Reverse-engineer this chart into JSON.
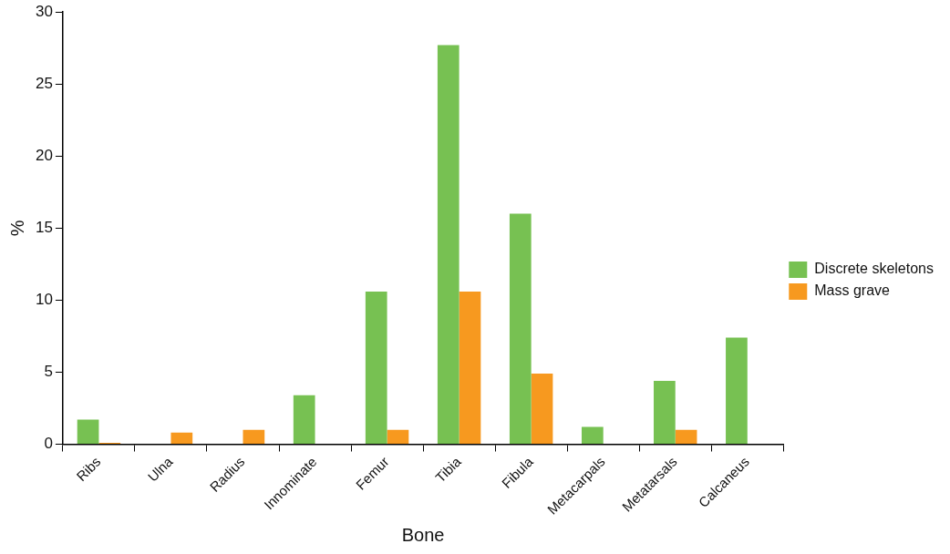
{
  "chart_data": {
    "type": "bar",
    "xlabel": "Bone",
    "ylabel": "%",
    "categories": [
      "Ribs",
      "Ulna",
      "Radius",
      "Innominate",
      "Femur",
      "Tibia",
      "Fibula",
      "Metacarpals",
      "Metatarsals",
      "Calcaneus"
    ],
    "series": [
      {
        "name": "Discrete skeletons",
        "color": "#77c152",
        "values": [
          1.7,
          null,
          null,
          3.4,
          10.6,
          27.7,
          16.0,
          1.2,
          4.4,
          7.4
        ]
      },
      {
        "name": "Mass grave",
        "color": "#f7991f",
        "values": [
          0.1,
          0.8,
          1.0,
          null,
          1.0,
          10.6,
          4.9,
          null,
          1.0,
          null
        ]
      }
    ],
    "ylim": [
      0,
      30
    ],
    "yticks": [
      0,
      5,
      10,
      15,
      20,
      25,
      30
    ],
    "grid": false,
    "legend": "right"
  }
}
